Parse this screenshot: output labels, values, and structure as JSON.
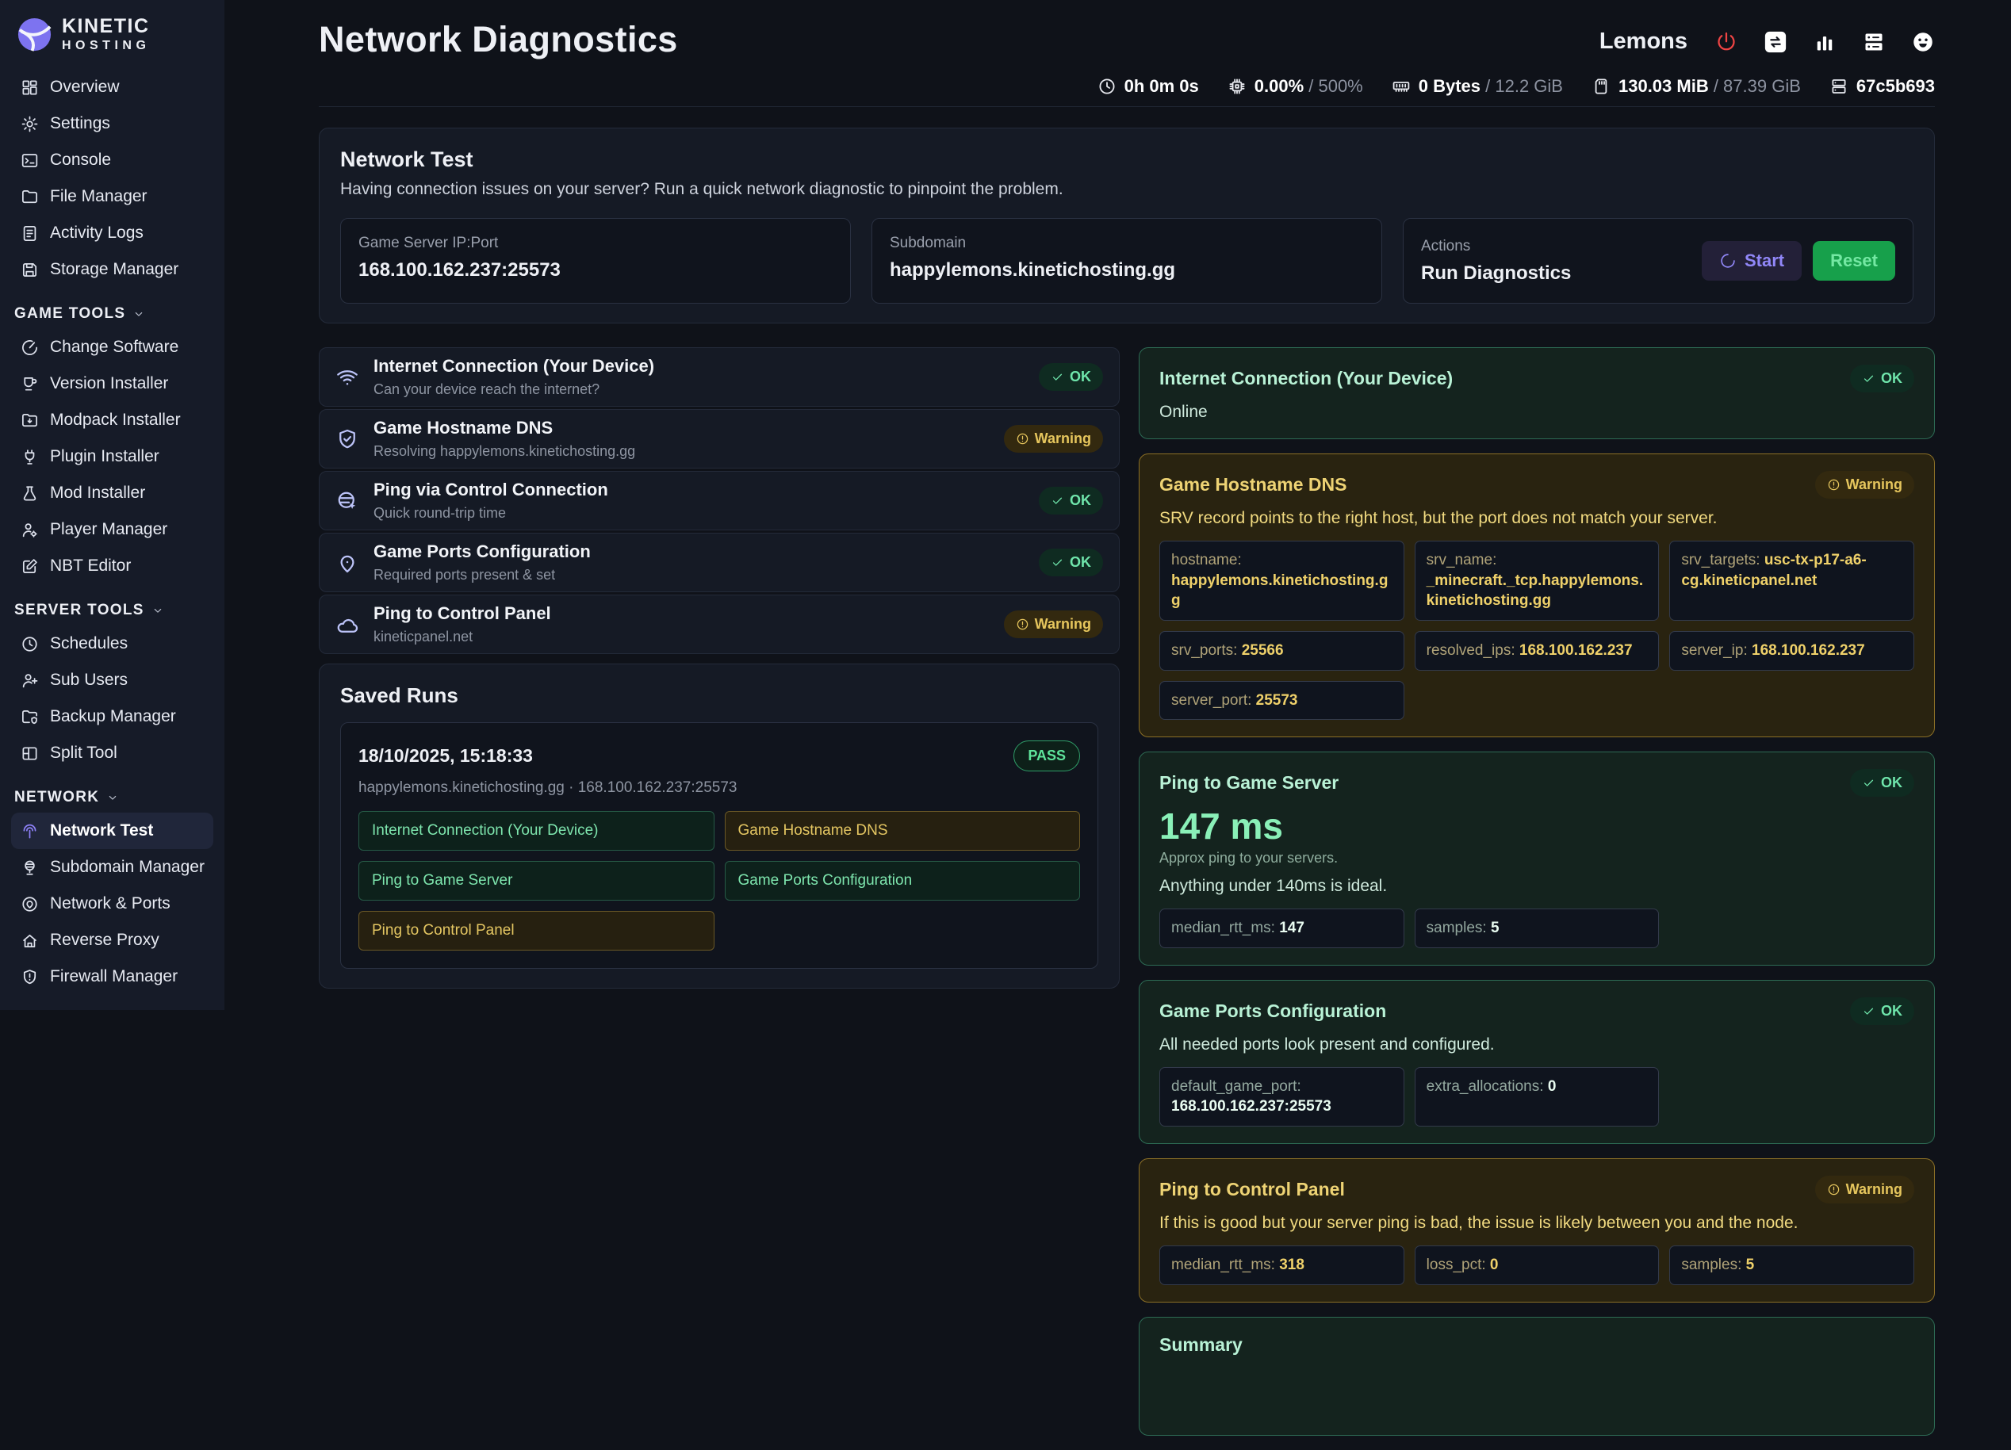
{
  "theme": {
    "accent": "#8d80f6",
    "ok": "#6fe5ab",
    "warn": "#e6c65d",
    "danger": "#ef4444"
  },
  "brand": {
    "line1": "KINETIC",
    "line2": "HOSTING"
  },
  "sidebar": {
    "main_items": [
      {
        "label": "Overview",
        "icon": "grid-icon"
      },
      {
        "label": "Settings",
        "icon": "gear-icon"
      },
      {
        "label": "Console",
        "icon": "terminal-icon"
      },
      {
        "label": "File Manager",
        "icon": "folder-icon"
      },
      {
        "label": "Activity Logs",
        "icon": "logs-icon"
      },
      {
        "label": "Storage Manager",
        "icon": "floppy-icon"
      }
    ],
    "sections": [
      {
        "label": "GAME TOOLS",
        "items": [
          {
            "label": "Change Software",
            "icon": "change-software-icon"
          },
          {
            "label": "Version Installer",
            "icon": "version-icon"
          },
          {
            "label": "Modpack Installer",
            "icon": "modpack-icon"
          },
          {
            "label": "Plugin Installer",
            "icon": "plug-icon"
          },
          {
            "label": "Mod Installer",
            "icon": "flask-icon"
          },
          {
            "label": "Player Manager",
            "icon": "user-gear-icon"
          },
          {
            "label": "NBT Editor",
            "icon": "edit-icon"
          }
        ]
      },
      {
        "label": "SERVER TOOLS",
        "items": [
          {
            "label": "Schedules",
            "icon": "clock-icon"
          },
          {
            "label": "Sub Users",
            "icon": "user-plus-icon"
          },
          {
            "label": "Backup Manager",
            "icon": "folder-shield-icon"
          },
          {
            "label": "Split Tool",
            "icon": "split-icon"
          }
        ]
      },
      {
        "label": "NETWORK",
        "items": [
          {
            "label": "Network Test",
            "icon": "beacon-icon",
            "active": true
          },
          {
            "label": "Subdomain Manager",
            "icon": "globe-stand-icon"
          },
          {
            "label": "Network & Ports",
            "icon": "pin-circle-icon"
          },
          {
            "label": "Reverse Proxy",
            "icon": "home-wifi-icon"
          },
          {
            "label": "Firewall Manager",
            "icon": "shield-alert-icon"
          }
        ]
      }
    ]
  },
  "header": {
    "title": "Network Diagnostics",
    "server_name": "Lemons",
    "actions": [
      {
        "name": "power-button",
        "icon": "power-icon",
        "tone": "danger"
      },
      {
        "name": "server-switch-button",
        "icon": "transfer-icon"
      },
      {
        "name": "metrics-button",
        "icon": "bars-icon"
      },
      {
        "name": "servers-button",
        "icon": "rack-filled-icon"
      },
      {
        "name": "account-button",
        "icon": "face-icon"
      }
    ],
    "stats": [
      {
        "name": "uptime",
        "icon": "clock-icon",
        "value": "0h 0m 0s",
        "max": ""
      },
      {
        "name": "cpu",
        "icon": "cpu-icon",
        "value": "0.00%",
        "max": "500%"
      },
      {
        "name": "memory",
        "icon": "ram-icon",
        "value": "0 Bytes",
        "max": "12.2 GiB"
      },
      {
        "name": "disk",
        "icon": "disk-icon",
        "value": "130.03 MiB",
        "max": "87.39 GiB"
      },
      {
        "name": "node",
        "icon": "node-icon",
        "value": "67c5b693",
        "max": ""
      }
    ]
  },
  "network_test": {
    "title": "Network Test",
    "description": "Having connection issues on your server? Run a quick network diagnostic to pinpoint the problem.",
    "fields": [
      {
        "label": "Game Server IP:Port",
        "value": "168.100.162.237:25573"
      },
      {
        "label": "Subdomain",
        "value": "happylemons.kinetichosting.gg"
      }
    ],
    "actions": {
      "label": "Actions",
      "value": "Run Diagnostics",
      "start_label": "Start",
      "reset_label": "Reset"
    }
  },
  "checks": [
    {
      "icon": "wifi-icon",
      "title": "Internet Connection (Your Device)",
      "subtitle": "Can your device reach the internet?",
      "status": "OK"
    },
    {
      "icon": "shield-check-icon",
      "title": "Game Hostname DNS",
      "subtitle": "Resolving happylemons.kinetichosting.gg",
      "status": "Warning"
    },
    {
      "icon": "globe-ping-icon",
      "title": "Ping via Control Connection",
      "subtitle": "Quick round-trip time",
      "status": "OK"
    },
    {
      "icon": "map-pin-icon",
      "title": "Game Ports Configuration",
      "subtitle": "Required ports present & set",
      "status": "OK"
    },
    {
      "icon": "cloud-icon",
      "title": "Ping to Control Panel",
      "subtitle": "kineticpanel.net",
      "status": "Warning"
    }
  ],
  "saved_runs": {
    "title": "Saved Runs",
    "runs": [
      {
        "timestamp": "18/10/2025, 15:18:33",
        "result": "PASS",
        "target": "happylemons.kinetichosting.gg · 168.100.162.237:25573",
        "checks": [
          {
            "label": "Internet Connection (Your Device)",
            "status": "pass"
          },
          {
            "label": "Game Hostname DNS",
            "status": "warn"
          },
          {
            "label": "Ping to Game Server",
            "status": "pass"
          },
          {
            "label": "Game Ports Configuration",
            "status": "pass"
          },
          {
            "label": "Ping to Control Panel",
            "status": "warn"
          }
        ]
      }
    ]
  },
  "results": [
    {
      "title": "Internet Connection (Your Device)",
      "status": "OK",
      "tone": "ok",
      "message": "Online",
      "fields": []
    },
    {
      "title": "Game Hostname DNS",
      "status": "Warning",
      "tone": "warn",
      "message": "SRV record points to the right host, but the port does not match your server.",
      "fields": [
        {
          "label": "hostname",
          "value": "happylemons.kinetichosting.gg"
        },
        {
          "label": "srv_name",
          "value": "_minecraft._tcp.happylemons.kinetichosting.gg"
        },
        {
          "label": "srv_targets",
          "value": "usc-tx-p17-a6-cg.kineticpanel.net"
        },
        {
          "label": "srv_ports",
          "value": "25566"
        },
        {
          "label": "resolved_ips",
          "value": "168.100.162.237"
        },
        {
          "label": "server_ip",
          "value": "168.100.162.237"
        },
        {
          "label": "server_port",
          "value": "25573"
        }
      ]
    },
    {
      "title": "Ping to Game Server",
      "status": "OK",
      "tone": "ok",
      "big_value": "147 ms",
      "big_caption": "Approx ping to your servers.",
      "message": "Anything under 140ms is ideal.",
      "fields": [
        {
          "label": "median_rtt_ms",
          "value": "147"
        },
        {
          "label": "samples",
          "value": "5"
        }
      ]
    },
    {
      "title": "Game Ports Configuration",
      "status": "OK",
      "tone": "ok",
      "message": "All needed ports look present and configured.",
      "fields": [
        {
          "label": "default_game_port",
          "value": "168.100.162.237:25573"
        },
        {
          "label": "extra_allocations",
          "value": "0"
        }
      ]
    },
    {
      "title": "Ping to Control Panel",
      "status": "Warning",
      "tone": "warn",
      "message": "If this is good but your server ping is bad, the issue is likely between you and the node.",
      "fields": [
        {
          "label": "median_rtt_ms",
          "value": "318"
        },
        {
          "label": "loss_pct",
          "value": "0"
        },
        {
          "label": "samples",
          "value": "5"
        }
      ]
    },
    {
      "title": "Summary",
      "tone": "ok",
      "cut": true,
      "fields": []
    }
  ]
}
